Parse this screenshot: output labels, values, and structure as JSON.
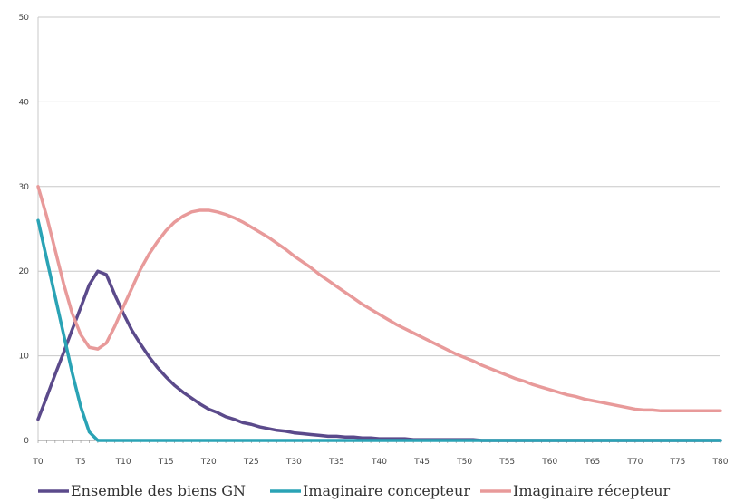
{
  "chart_data": {
    "type": "line",
    "title": "",
    "xlabel": "",
    "ylabel": "",
    "ylim": [
      0,
      50
    ],
    "y_ticks": [
      0,
      10,
      20,
      30,
      40,
      50
    ],
    "x": [
      0,
      1,
      2,
      3,
      4,
      5,
      6,
      7,
      8,
      9,
      10,
      11,
      12,
      13,
      14,
      15,
      16,
      17,
      18,
      19,
      20,
      21,
      22,
      23,
      24,
      25,
      26,
      27,
      28,
      29,
      30,
      31,
      32,
      33,
      34,
      35,
      36,
      37,
      38,
      39,
      40,
      41,
      42,
      43,
      44,
      45,
      46,
      47,
      48,
      49,
      50,
      51,
      52,
      53,
      54,
      55,
      56,
      57,
      58,
      59,
      60,
      61,
      62,
      63,
      64,
      65,
      66,
      67,
      68,
      69,
      70,
      71,
      72,
      73,
      74,
      75,
      76,
      77,
      78,
      79,
      80
    ],
    "x_tick_labels": [
      "T0",
      "T5",
      "T10",
      "T15",
      "T20",
      "T25",
      "T30",
      "T35",
      "T40",
      "T45",
      "T50",
      "T55",
      "T60",
      "T65",
      "T70",
      "T75",
      "T80"
    ],
    "x_tick_positions": [
      0,
      5,
      10,
      15,
      20,
      25,
      30,
      35,
      40,
      45,
      50,
      55,
      60,
      65,
      70,
      75,
      80
    ],
    "grid": true,
    "legend_position": "bottom",
    "series": [
      {
        "name": "Ensemble des biens GN",
        "color": "#5b4a8b",
        "values": [
          2.5,
          5.1,
          7.8,
          10.4,
          13.1,
          15.7,
          18.4,
          20.0,
          19.6,
          17.2,
          15.0,
          13.0,
          11.4,
          9.9,
          8.6,
          7.5,
          6.5,
          5.7,
          5.0,
          4.3,
          3.7,
          3.3,
          2.8,
          2.5,
          2.1,
          1.9,
          1.6,
          1.4,
          1.2,
          1.1,
          0.9,
          0.8,
          0.7,
          0.6,
          0.5,
          0.5,
          0.4,
          0.4,
          0.3,
          0.3,
          0.2,
          0.2,
          0.2,
          0.2,
          0.1,
          0.1,
          0.1,
          0.1,
          0.1,
          0.1,
          0.1,
          0.1,
          0.0,
          0.0,
          0.0,
          0.0,
          0.0,
          0.0,
          0.0,
          0.0,
          0.0,
          0.0,
          0.0,
          0.0,
          0.0,
          0.0,
          0.0,
          0.0,
          0.0,
          0.0,
          0.0,
          0.0,
          0.0,
          0.0,
          0.0,
          0.0,
          0.0,
          0.0,
          0.0,
          0.0,
          0.0
        ]
      },
      {
        "name": "Imaginaire concepteur",
        "color": "#2aa3b5",
        "values": [
          26.0,
          21.5,
          17.0,
          12.5,
          8.0,
          4.0,
          1.0,
          0.0,
          0.0,
          0.0,
          0.0,
          0.0,
          0.0,
          0.0,
          0.0,
          0.0,
          0.0,
          0.0,
          0.0,
          0.0,
          0.0,
          0.0,
          0.0,
          0.0,
          0.0,
          0.0,
          0.0,
          0.0,
          0.0,
          0.0,
          0.0,
          0.0,
          0.0,
          0.0,
          0.0,
          0.0,
          0.0,
          0.0,
          0.0,
          0.0,
          0.0,
          0.0,
          0.0,
          0.0,
          0.0,
          0.0,
          0.0,
          0.0,
          0.0,
          0.0,
          0.0,
          0.0,
          0.0,
          0.0,
          0.0,
          0.0,
          0.0,
          0.0,
          0.0,
          0.0,
          0.0,
          0.0,
          0.0,
          0.0,
          0.0,
          0.0,
          0.0,
          0.0,
          0.0,
          0.0,
          0.0,
          0.0,
          0.0,
          0.0,
          0.0,
          0.0,
          0.0,
          0.0,
          0.0,
          0.0,
          0.0
        ]
      },
      {
        "name": "Imaginaire récepteur",
        "color": "#e89a9a",
        "values": [
          30.0,
          26.5,
          22.5,
          18.5,
          15.0,
          12.5,
          11.0,
          10.8,
          11.5,
          13.5,
          15.8,
          18.0,
          20.2,
          22.0,
          23.5,
          24.8,
          25.8,
          26.5,
          27.0,
          27.2,
          27.2,
          27.0,
          26.7,
          26.3,
          25.8,
          25.2,
          24.6,
          24.0,
          23.3,
          22.6,
          21.8,
          21.1,
          20.4,
          19.6,
          18.9,
          18.2,
          17.5,
          16.8,
          16.1,
          15.5,
          14.9,
          14.3,
          13.7,
          13.2,
          12.7,
          12.2,
          11.7,
          11.2,
          10.7,
          10.2,
          9.8,
          9.4,
          8.9,
          8.5,
          8.1,
          7.7,
          7.3,
          7.0,
          6.6,
          6.3,
          6.0,
          5.7,
          5.4,
          5.2,
          4.9,
          4.7,
          4.5,
          4.3,
          4.1,
          3.9,
          3.7,
          3.6,
          3.6,
          3.5,
          3.5,
          3.5,
          3.5,
          3.5,
          3.5,
          3.5,
          3.5
        ]
      }
    ]
  }
}
